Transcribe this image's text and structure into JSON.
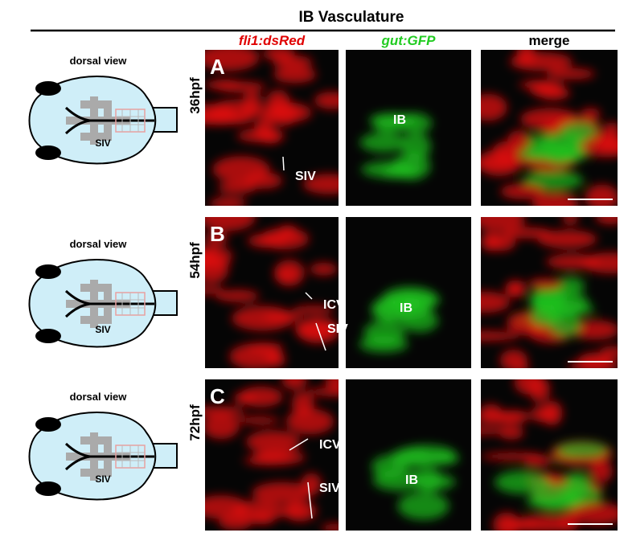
{
  "header": {
    "title": "IB Vasculature"
  },
  "columns": [
    "fli1:dsRed",
    "gut:GFP",
    "merge"
  ],
  "rows": [
    {
      "letter": "A",
      "label": "36hpf",
      "schematic": {
        "caption": "dorsal view",
        "label": "SIV"
      },
      "red_labels": [
        "SIV"
      ],
      "green_labels": [
        "IB"
      ]
    },
    {
      "letter": "B",
      "label": "54hpf",
      "schematic": {
        "caption": "dorsal view",
        "label": "SIV"
      },
      "red_labels": [
        "ICV",
        "SIV"
      ],
      "green_labels": [
        "IB"
      ]
    },
    {
      "letter": "C",
      "label": "72hpf",
      "schematic": {
        "caption": "dorsal view",
        "label": "SIV"
      },
      "red_labels": [
        "ICV",
        "SIV"
      ],
      "green_labels": [
        "IB"
      ]
    }
  ]
}
